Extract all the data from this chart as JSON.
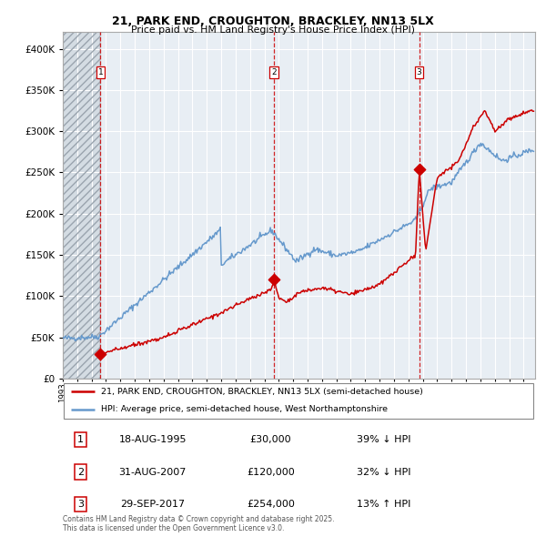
{
  "title_line1": "21, PARK END, CROUGHTON, BRACKLEY, NN13 5LX",
  "title_line2": "Price paid vs. HM Land Registry's House Price Index (HPI)",
  "legend_label_red": "21, PARK END, CROUGHTON, BRACKLEY, NN13 5LX (semi-detached house)",
  "legend_label_blue": "HPI: Average price, semi-detached house, West Northamptonshire",
  "transactions": [
    {
      "num": 1,
      "date": "18-AUG-1995",
      "price": 30000,
      "pct": "39%",
      "dir": "↓",
      "x_year": 1995.62
    },
    {
      "num": 2,
      "date": "31-AUG-2007",
      "price": 120000,
      "pct": "32%",
      "dir": "↓",
      "x_year": 2007.66
    },
    {
      "num": 3,
      "date": "29-SEP-2017",
      "price": 254000,
      "pct": "13%",
      "dir": "↑",
      "x_year": 2017.75
    }
  ],
  "footer": "Contains HM Land Registry data © Crown copyright and database right 2025.\nThis data is licensed under the Open Government Licence v3.0.",
  "red_color": "#cc0000",
  "blue_color": "#6699cc",
  "dashed_color": "#cc0000",
  "bg_color": "#e8eef4",
  "grid_color": "#ffffff",
  "ylim": [
    0,
    420000
  ],
  "xlim_start": 1993.0,
  "xlim_end": 2025.8
}
